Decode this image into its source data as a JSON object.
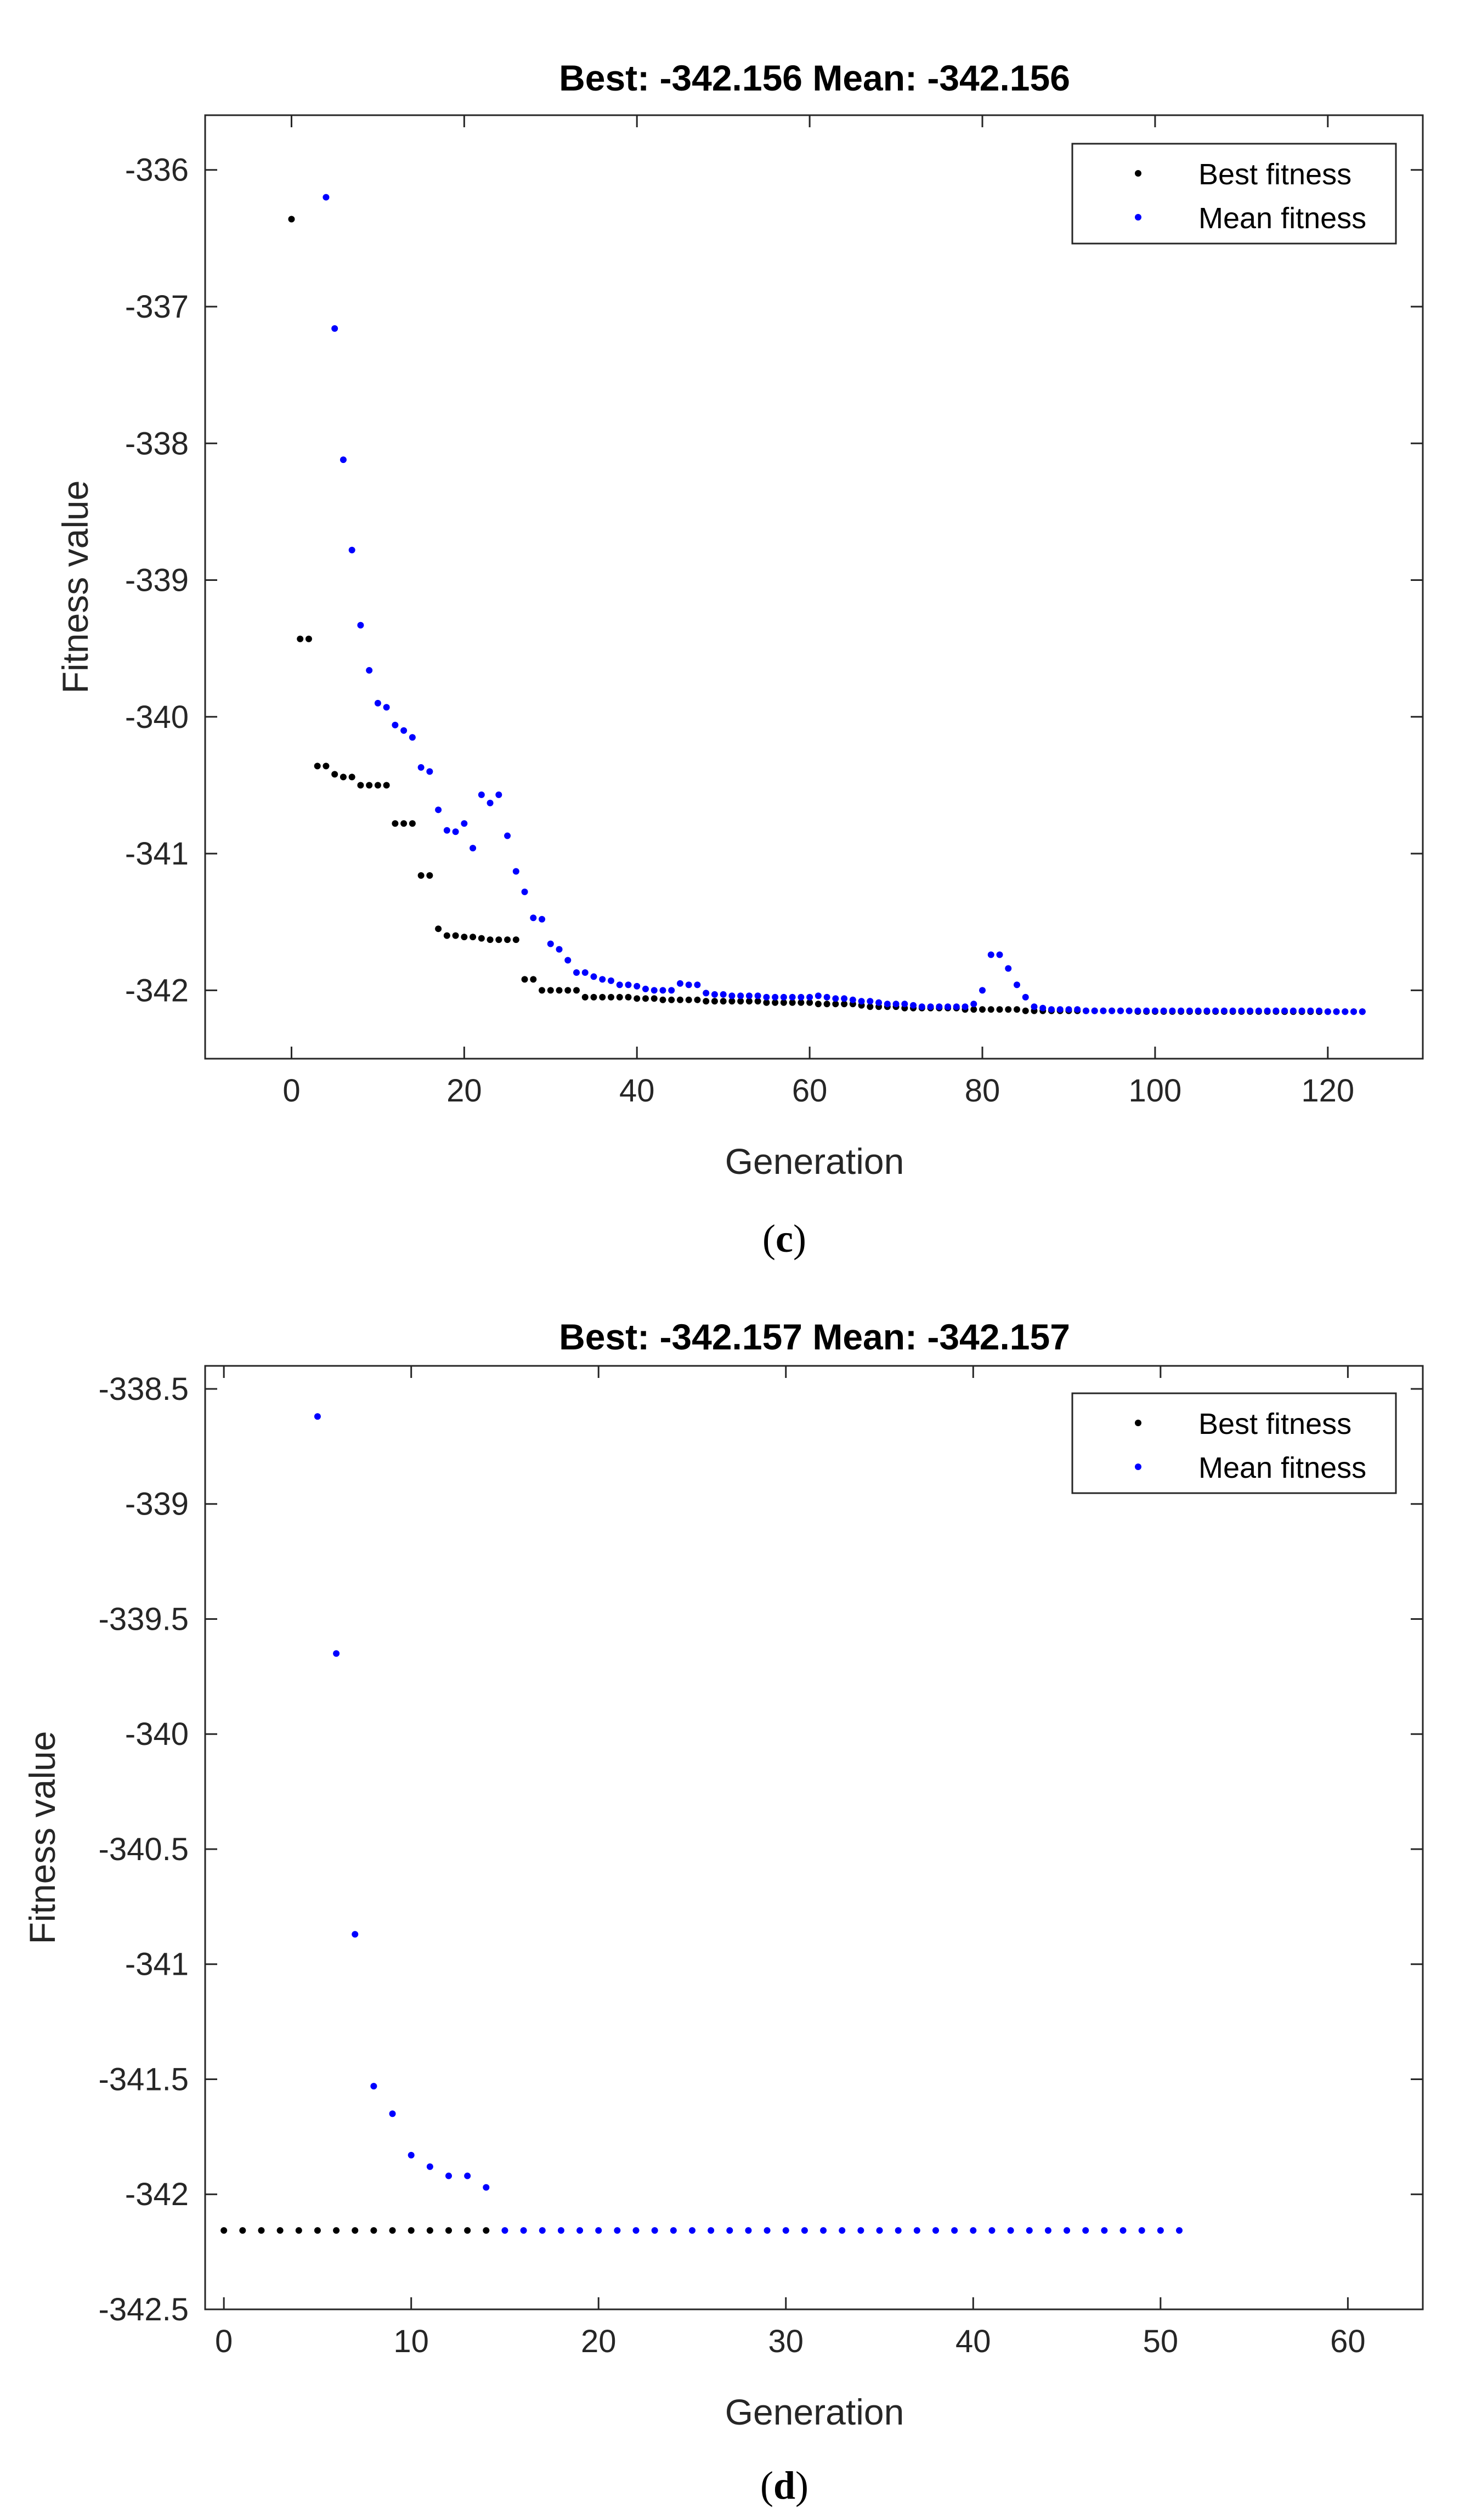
{
  "colors": {
    "best": "#000000",
    "mean": "#0000ff",
    "axis": "#262626"
  },
  "chart_data": [
    {
      "panel_label_open": "(",
      "panel_label_letter": "c",
      "panel_label_close": ")",
      "type": "scatter",
      "title": "Best: -342.156 Mean: -342.156",
      "xlabel": "Generation",
      "ylabel": "Fitness value",
      "xlim": [
        -10,
        131
      ],
      "ylim": [
        -342.5,
        -335.6
      ],
      "xticks": [
        0,
        20,
        40,
        60,
        80,
        100,
        120
      ],
      "yticks": [
        -336,
        -337,
        -338,
        -339,
        -340,
        -341,
        -342
      ],
      "legend": {
        "position": "top-right",
        "entries": [
          "Best fitness",
          "Mean fitness"
        ]
      },
      "series": [
        {
          "name": "Best fitness",
          "x": [
            0,
            1,
            2,
            3,
            4,
            5,
            6,
            7,
            8,
            9,
            10,
            11,
            12,
            13,
            14,
            15,
            16,
            17,
            18,
            19,
            20,
            21,
            22,
            23,
            24,
            25,
            26,
            27,
            28,
            29,
            30,
            31,
            32,
            33,
            34,
            35,
            36,
            37,
            38,
            39,
            40,
            41,
            42,
            43,
            44,
            45,
            46,
            47,
            48,
            49,
            50,
            51,
            52,
            53,
            54,
            55,
            56,
            57,
            58,
            59,
            60,
            61,
            62,
            63,
            64,
            65,
            66,
            67,
            68,
            69,
            70,
            71,
            72,
            73,
            74,
            75,
            76,
            77,
            78,
            79,
            80,
            81,
            82,
            83,
            84,
            85,
            86,
            87,
            88,
            89,
            90,
            91,
            92,
            93,
            94,
            95,
            96,
            97,
            98,
            99,
            100,
            101,
            102,
            103,
            104,
            105,
            106,
            107,
            108,
            109,
            110,
            111,
            112,
            113,
            114,
            115,
            116,
            117,
            118,
            119,
            120,
            121,
            122,
            123,
            124
          ],
          "y": [
            -336.36,
            -339.43,
            -339.43,
            -340.36,
            -340.36,
            -340.42,
            -340.44,
            -340.44,
            -340.5,
            -340.5,
            -340.5,
            -340.5,
            -340.78,
            -340.78,
            -340.78,
            -341.16,
            -341.16,
            -341.55,
            -341.6,
            -341.6,
            -341.61,
            -341.61,
            -341.62,
            -341.63,
            -341.63,
            -341.63,
            -341.63,
            -341.92,
            -341.92,
            -342.0,
            -342.0,
            -342.0,
            -342.0,
            -342.0,
            -342.05,
            -342.05,
            -342.05,
            -342.05,
            -342.05,
            -342.05,
            -342.06,
            -342.06,
            -342.06,
            -342.07,
            -342.07,
            -342.07,
            -342.07,
            -342.07,
            -342.08,
            -342.08,
            -342.08,
            -342.08,
            -342.08,
            -342.08,
            -342.08,
            -342.09,
            -342.09,
            -342.09,
            -342.09,
            -342.09,
            -342.09,
            -342.1,
            -342.1,
            -342.1,
            -342.1,
            -342.1,
            -342.11,
            -342.12,
            -342.12,
            -342.12,
            -342.12,
            -342.13,
            -342.13,
            -342.13,
            -342.13,
            -342.13,
            -342.13,
            -342.13,
            -342.14,
            -342.14,
            -342.14,
            -342.14,
            -342.14,
            -342.14,
            -342.14,
            -342.15,
            -342.15,
            -342.15,
            -342.15,
            -342.15,
            -342.15,
            -342.15,
            -342.15,
            -342.15,
            -342.15,
            -342.15,
            -342.15,
            -342.15,
            -342.155,
            -342.155,
            -342.155,
            -342.155,
            -342.155,
            -342.155,
            -342.155,
            -342.155,
            -342.155,
            -342.155,
            -342.155,
            -342.155,
            -342.155,
            -342.155,
            -342.155,
            -342.155,
            -342.155,
            -342.156,
            -342.156,
            -342.156,
            -342.156,
            -342.156,
            -342.156,
            -342.156,
            -342.156,
            -342.156,
            -342.156
          ]
        },
        {
          "name": "Mean fitness",
          "x": [
            4,
            5,
            6,
            7,
            8,
            9,
            10,
            11,
            12,
            13,
            14,
            15,
            16,
            17,
            18,
            19,
            20,
            21,
            22,
            23,
            24,
            25,
            26,
            27,
            28,
            29,
            30,
            31,
            32,
            33,
            34,
            35,
            36,
            37,
            38,
            39,
            40,
            41,
            42,
            43,
            44,
            45,
            46,
            47,
            48,
            49,
            50,
            51,
            52,
            53,
            54,
            55,
            56,
            57,
            58,
            59,
            60,
            61,
            62,
            63,
            64,
            65,
            66,
            67,
            68,
            69,
            70,
            71,
            72,
            73,
            74,
            75,
            76,
            77,
            78,
            79,
            80,
            81,
            82,
            83,
            84,
            85,
            86,
            87,
            88,
            89,
            90,
            91,
            92,
            93,
            94,
            95,
            96,
            97,
            98,
            99,
            100,
            101,
            102,
            103,
            104,
            105,
            106,
            107,
            108,
            109,
            110,
            111,
            112,
            113,
            114,
            115,
            116,
            117,
            118,
            119,
            120,
            121,
            122,
            123,
            124
          ],
          "y": [
            -336.2,
            -337.16,
            -338.12,
            -338.78,
            -339.33,
            -339.66,
            -339.9,
            -339.93,
            -340.06,
            -340.1,
            -340.15,
            -340.37,
            -340.4,
            -340.68,
            -340.83,
            -340.84,
            -340.78,
            -340.96,
            -340.57,
            -340.63,
            -340.57,
            -340.87,
            -341.13,
            -341.28,
            -341.47,
            -341.48,
            -341.66,
            -341.7,
            -341.78,
            -341.87,
            -341.87,
            -341.9,
            -341.92,
            -341.93,
            -341.96,
            -341.96,
            -341.97,
            -341.99,
            -342.0,
            -342.0,
            -342.0,
            -341.95,
            -341.96,
            -341.96,
            -342.02,
            -342.03,
            -342.03,
            -342.04,
            -342.04,
            -342.04,
            -342.04,
            -342.05,
            -342.05,
            -342.05,
            -342.05,
            -342.05,
            -342.05,
            -342.04,
            -342.05,
            -342.06,
            -342.06,
            -342.07,
            -342.08,
            -342.08,
            -342.09,
            -342.1,
            -342.1,
            -342.1,
            -342.11,
            -342.12,
            -342.12,
            -342.12,
            -342.12,
            -342.12,
            -342.12,
            -342.1,
            -342.0,
            -341.74,
            -341.74,
            -341.84,
            -341.96,
            -342.05,
            -342.12,
            -342.13,
            -342.14,
            -342.14,
            -342.14,
            -342.14,
            -342.15,
            -342.15,
            -342.15,
            -342.15,
            -342.15,
            -342.15,
            -342.15,
            -342.15,
            -342.15,
            -342.15,
            -342.15,
            -342.15,
            -342.15,
            -342.15,
            -342.15,
            -342.15,
            -342.15,
            -342.15,
            -342.15,
            -342.15,
            -342.15,
            -342.15,
            -342.15,
            -342.15,
            -342.15,
            -342.15,
            -342.15,
            -342.15,
            -342.156,
            -342.156,
            -342.156,
            -342.156,
            -342.156
          ]
        }
      ]
    },
    {
      "panel_label_open": "(",
      "panel_label_letter": "d",
      "panel_label_close": ")",
      "type": "scatter",
      "title": "Best: -342.157 Mean: -342.157",
      "xlabel": "Generation",
      "ylabel": "Fitness value",
      "xlim": [
        -1,
        64
      ],
      "ylim": [
        -342.5,
        -338.4
      ],
      "xticks": [
        0,
        10,
        20,
        30,
        40,
        50,
        60
      ],
      "yticks": [
        -338.5,
        -339,
        -339.5,
        -340,
        -340.5,
        -341,
        -341.5,
        -342,
        -342.5
      ],
      "legend": {
        "position": "top-right",
        "entries": [
          "Best fitness",
          "Mean fitness"
        ]
      },
      "series": [
        {
          "name": "Best fitness",
          "x": [
            0,
            1,
            2,
            3,
            4,
            5,
            6,
            7,
            8,
            9,
            10,
            11,
            12,
            13,
            14
          ],
          "y": [
            -342.157,
            -342.157,
            -342.157,
            -342.157,
            -342.157,
            -342.157,
            -342.157,
            -342.157,
            -342.157,
            -342.157,
            -342.157,
            -342.157,
            -342.157,
            -342.157,
            -342.157
          ]
        },
        {
          "name": "Mean fitness",
          "x": [
            5,
            6,
            7,
            8,
            9,
            10,
            11,
            12,
            13,
            14,
            15,
            16,
            17,
            18,
            19,
            20,
            21,
            22,
            23,
            24,
            25,
            26,
            27,
            28,
            29,
            30,
            31,
            32,
            33,
            34,
            35,
            36,
            37,
            38,
            39,
            40,
            41,
            42,
            43,
            44,
            45,
            46,
            47,
            48,
            49,
            50,
            51
          ],
          "y": [
            -338.62,
            -339.65,
            -340.87,
            -341.53,
            -341.65,
            -341.83,
            -341.88,
            -341.92,
            -341.92,
            -341.97,
            -342.157,
            -342.157,
            -342.157,
            -342.157,
            -342.157,
            -342.157,
            -342.157,
            -342.157,
            -342.157,
            -342.157,
            -342.157,
            -342.157,
            -342.157,
            -342.157,
            -342.157,
            -342.157,
            -342.157,
            -342.157,
            -342.157,
            -342.157,
            -342.157,
            -342.157,
            -342.157,
            -342.157,
            -342.157,
            -342.157,
            -342.157,
            -342.157,
            -342.157,
            -342.157,
            -342.157,
            -342.157,
            -342.157,
            -342.157,
            -342.157,
            -342.157,
            -342.157
          ]
        }
      ]
    }
  ]
}
